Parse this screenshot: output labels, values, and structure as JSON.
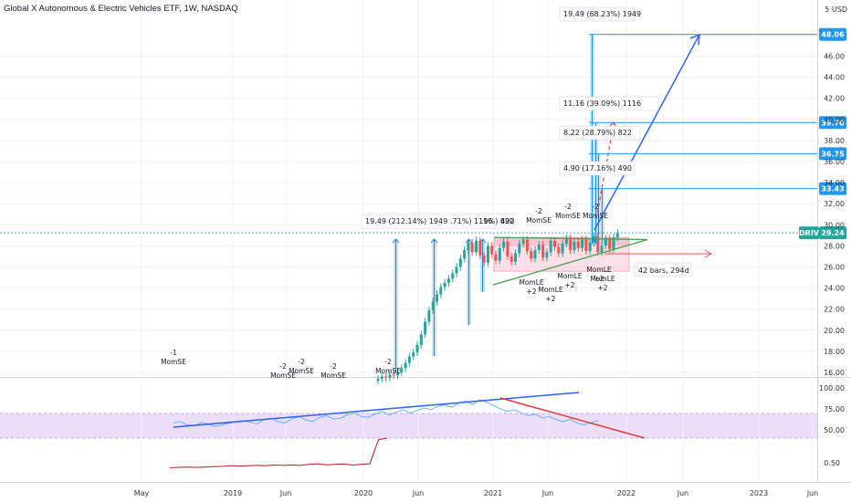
{
  "chart_data": {
    "type": "candlestick",
    "title": "Global X Autonomous & Electric Vehicles ETF, 1W, NASDAQ",
    "price_axis": {
      "ylim": [
        15.2,
        49.6
      ],
      "ticks": [
        16,
        18,
        20,
        22,
        24,
        26,
        28,
        30,
        32,
        34,
        36,
        38,
        40,
        42,
        44,
        46
      ],
      "top_partial_label": "5 USD",
      "current_price": 29.24,
      "ticker": "DRIV"
    },
    "time_axis": {
      "labels": [
        {
          "label": "May",
          "t": 0
        },
        {
          "label": "2019",
          "t": 1
        },
        {
          "label": "Jun",
          "t": 2
        },
        {
          "label": "2020",
          "t": 3
        },
        {
          "label": "Jun",
          "t": 4
        },
        {
          "label": "2021",
          "t": 5
        },
        {
          "label": "Jun",
          "t": 6
        },
        {
          "label": "2022",
          "t": 7
        },
        {
          "label": "Jun",
          "t": 8
        },
        {
          "label": "2023",
          "t": 9
        },
        {
          "label": "Jun",
          "t": 10
        }
      ]
    },
    "price_series": {
      "name": "DRIV",
      "close": [
        15.4,
        15.6,
        15.5,
        15.8,
        15.7,
        16.0,
        16.4,
        16.9,
        17.5,
        17.9,
        18.6,
        19.6,
        20.8,
        21.9,
        22.7,
        23.4,
        24.1,
        24.5,
        24.9,
        25.4,
        26.0,
        26.8,
        27.6,
        28.3,
        27.4,
        28.5,
        27.1,
        26.4,
        28.0,
        27.2,
        26.6,
        27.8,
        28.4,
        27.0,
        26.5,
        27.3,
        28.2,
        28.6,
        27.5,
        26.8,
        27.6,
        28.1,
        26.9,
        27.4,
        28.5,
        27.9,
        27.3,
        28.2,
        28.7,
        27.6,
        28.4,
        27.8,
        28.6,
        27.5,
        28.3,
        28.9,
        27.4,
        28.0,
        28.7,
        27.7,
        28.8,
        29.24
      ]
    },
    "horizontal_levels": [
      {
        "label": "48.06",
        "value": 48.06
      },
      {
        "label": "39.70",
        "value": 39.7
      },
      {
        "label": "36.75",
        "value": 36.75
      },
      {
        "label": "33.43",
        "value": 33.43
      }
    ],
    "measure_labels_right": [
      "19.49 (68.23%) 1949",
      "11.16 (39.09%) 1116",
      "8.22 (28.79%) 822",
      "4.90 (17.16%) 490"
    ],
    "measure_labels_left": [
      "19.49 (212.14%) 1949",
      ".71%) 1116",
      ".9%) 822",
      "490"
    ],
    "date_range_label": "42 bars, 294d",
    "signals": [
      {
        "count": "-1",
        "name": "MomSE"
      },
      {
        "count": "-2",
        "name": "MomSE"
      },
      {
        "count": "-2",
        "name": "MomSE"
      },
      {
        "count": "-2",
        "name": "MomSE"
      },
      {
        "count": "-2",
        "name": "MomSE"
      },
      {
        "count": "-2",
        "name": "MomSE"
      },
      {
        "count": "-2",
        "name": "MomSE"
      },
      {
        "count": "-2",
        "name": "MomSE"
      },
      {
        "count": "+2",
        "name": "MomLE"
      },
      {
        "count": "+2",
        "name": "MomLE"
      },
      {
        "count": "+2",
        "name": "MomLE"
      },
      {
        "count": "+2",
        "name": "MomLE"
      },
      {
        "count": "+2",
        "name": "MomLE"
      }
    ],
    "oscillator": {
      "ticks": [
        100.0,
        75.0,
        50.0
      ],
      "band": [
        50,
        70
      ],
      "blue_series": [
        58,
        60,
        56,
        55,
        59,
        57,
        54,
        56,
        58,
        60,
        61,
        59,
        57,
        62,
        64,
        60,
        58,
        63,
        66,
        62,
        60,
        65,
        67,
        63,
        64,
        68,
        70,
        66,
        65,
        69,
        72,
        68,
        71,
        74,
        70,
        73,
        76,
        74,
        78,
        80,
        77,
        82,
        84,
        80,
        86,
        83,
        79,
        75,
        72,
        74,
        70,
        67,
        69,
        64,
        66,
        62,
        60,
        63,
        58,
        56,
        59,
        61
      ]
    },
    "oscillator2": {
      "ticks": [
        0.5
      ],
      "red_series": [
        0.1,
        0.11,
        0.12,
        0.11,
        0.12,
        0.13,
        0.14,
        0.16,
        0.15,
        0.16,
        0.17,
        0.16,
        0.18,
        0.17,
        0.18,
        0.17,
        0.2,
        0.22,
        0.19,
        0.2,
        0.21,
        0.18,
        0.2,
        0.22,
        0.95,
        1.0
      ]
    }
  }
}
